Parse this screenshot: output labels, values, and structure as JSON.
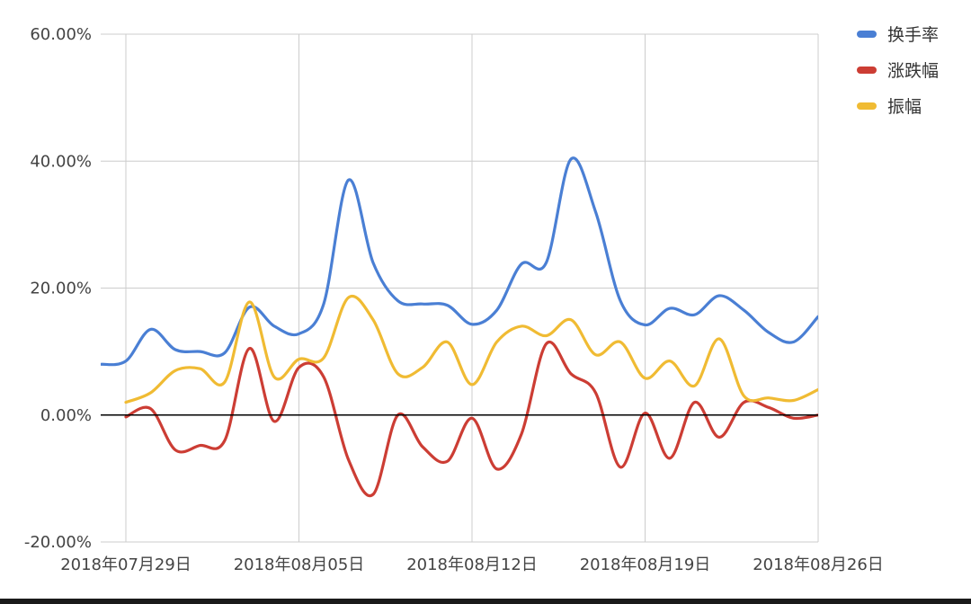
{
  "chart_data": {
    "type": "line",
    "title": "",
    "xlabel": "",
    "ylabel": "",
    "ylim": [
      -20,
      60
    ],
    "y_ticks": [
      {
        "value": -20,
        "label": "-20.00%"
      },
      {
        "value": 0,
        "label": "0.00%"
      },
      {
        "value": 20,
        "label": "20.00%"
      },
      {
        "value": 40,
        "label": "40.00%"
      },
      {
        "value": 60,
        "label": "60.00%"
      }
    ],
    "x_start_index": 0,
    "x_end_index": 28,
    "x_ticks": [
      {
        "index": 0,
        "label": "2018年07月29日"
      },
      {
        "index": 7,
        "label": "2018年08月05日"
      },
      {
        "index": 14,
        "label": "2018年08月12日"
      },
      {
        "index": 21,
        "label": "2018年08月19日"
      },
      {
        "index": 28,
        "label": "2018年08月26日"
      }
    ],
    "grid": true,
    "legend_position": "top-right",
    "series": [
      {
        "name": "换手率",
        "color": "#4a7fd4",
        "points": [
          [
            -1,
            8.0
          ],
          [
            0,
            8.5
          ],
          [
            1,
            13.5
          ],
          [
            2,
            10.3
          ],
          [
            3,
            10.0
          ],
          [
            4,
            9.8
          ],
          [
            5,
            17.0
          ],
          [
            6,
            14.0
          ],
          [
            7,
            12.8
          ],
          [
            8,
            17.5
          ],
          [
            9,
            37.0
          ],
          [
            10,
            24.0
          ],
          [
            11,
            18.0
          ],
          [
            12,
            17.5
          ],
          [
            13,
            17.3
          ],
          [
            14,
            14.3
          ],
          [
            15,
            16.5
          ],
          [
            16,
            23.8
          ],
          [
            17,
            24.0
          ],
          [
            18,
            40.3
          ],
          [
            19,
            32.0
          ],
          [
            20,
            18.0
          ],
          [
            21,
            14.2
          ],
          [
            22,
            16.8
          ],
          [
            23,
            15.8
          ],
          [
            24,
            18.8
          ],
          [
            25,
            16.5
          ],
          [
            26,
            13.0
          ],
          [
            27,
            11.5
          ],
          [
            28,
            15.5
          ]
        ]
      },
      {
        "name": "涨跌幅",
        "color": "#cc3d34",
        "points": [
          [
            0,
            -0.3
          ],
          [
            1,
            1.0
          ],
          [
            2,
            -5.5
          ],
          [
            3,
            -4.8
          ],
          [
            4,
            -4.0
          ],
          [
            5,
            10.5
          ],
          [
            6,
            -1.0
          ],
          [
            7,
            7.5
          ],
          [
            8,
            6.0
          ],
          [
            9,
            -7.0
          ],
          [
            10,
            -12.5
          ],
          [
            11,
            0.0
          ],
          [
            12,
            -5.0
          ],
          [
            13,
            -7.3
          ],
          [
            14,
            -0.5
          ],
          [
            15,
            -8.5
          ],
          [
            16,
            -3.0
          ],
          [
            17,
            11.2
          ],
          [
            18,
            6.5
          ],
          [
            19,
            3.5
          ],
          [
            20,
            -8.2
          ],
          [
            21,
            0.3
          ],
          [
            22,
            -6.8
          ],
          [
            23,
            2.0
          ],
          [
            24,
            -3.5
          ],
          [
            25,
            2.0
          ],
          [
            26,
            1.2
          ],
          [
            27,
            -0.5
          ],
          [
            28,
            0.0
          ]
        ]
      },
      {
        "name": "振幅",
        "color": "#f0bb33",
        "points": [
          [
            0,
            2.0
          ],
          [
            1,
            3.5
          ],
          [
            2,
            7.0
          ],
          [
            3,
            7.3
          ],
          [
            4,
            5.2
          ],
          [
            5,
            17.8
          ],
          [
            6,
            6.0
          ],
          [
            7,
            8.8
          ],
          [
            8,
            9.0
          ],
          [
            9,
            18.5
          ],
          [
            10,
            15.0
          ],
          [
            11,
            6.5
          ],
          [
            12,
            7.5
          ],
          [
            13,
            11.5
          ],
          [
            14,
            4.8
          ],
          [
            15,
            11.5
          ],
          [
            16,
            14.0
          ],
          [
            17,
            12.5
          ],
          [
            18,
            15.0
          ],
          [
            19,
            9.5
          ],
          [
            20,
            11.5
          ],
          [
            21,
            5.8
          ],
          [
            22,
            8.5
          ],
          [
            23,
            4.6
          ],
          [
            24,
            12.0
          ],
          [
            25,
            3.0
          ],
          [
            26,
            2.7
          ],
          [
            27,
            2.3
          ],
          [
            28,
            4.0
          ]
        ]
      }
    ]
  }
}
